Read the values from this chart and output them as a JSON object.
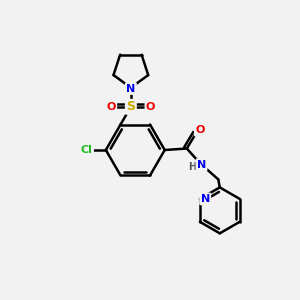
{
  "background_color": "#f2f2f2",
  "atom_colors": {
    "C": "#000000",
    "N": "#0000ee",
    "O": "#ee0000",
    "S": "#ccaa00",
    "Cl": "#22bb22",
    "H": "#555555"
  },
  "bond_color": "#000000",
  "bond_width": 1.8,
  "figsize": [
    3.0,
    3.0
  ],
  "dpi": 100
}
